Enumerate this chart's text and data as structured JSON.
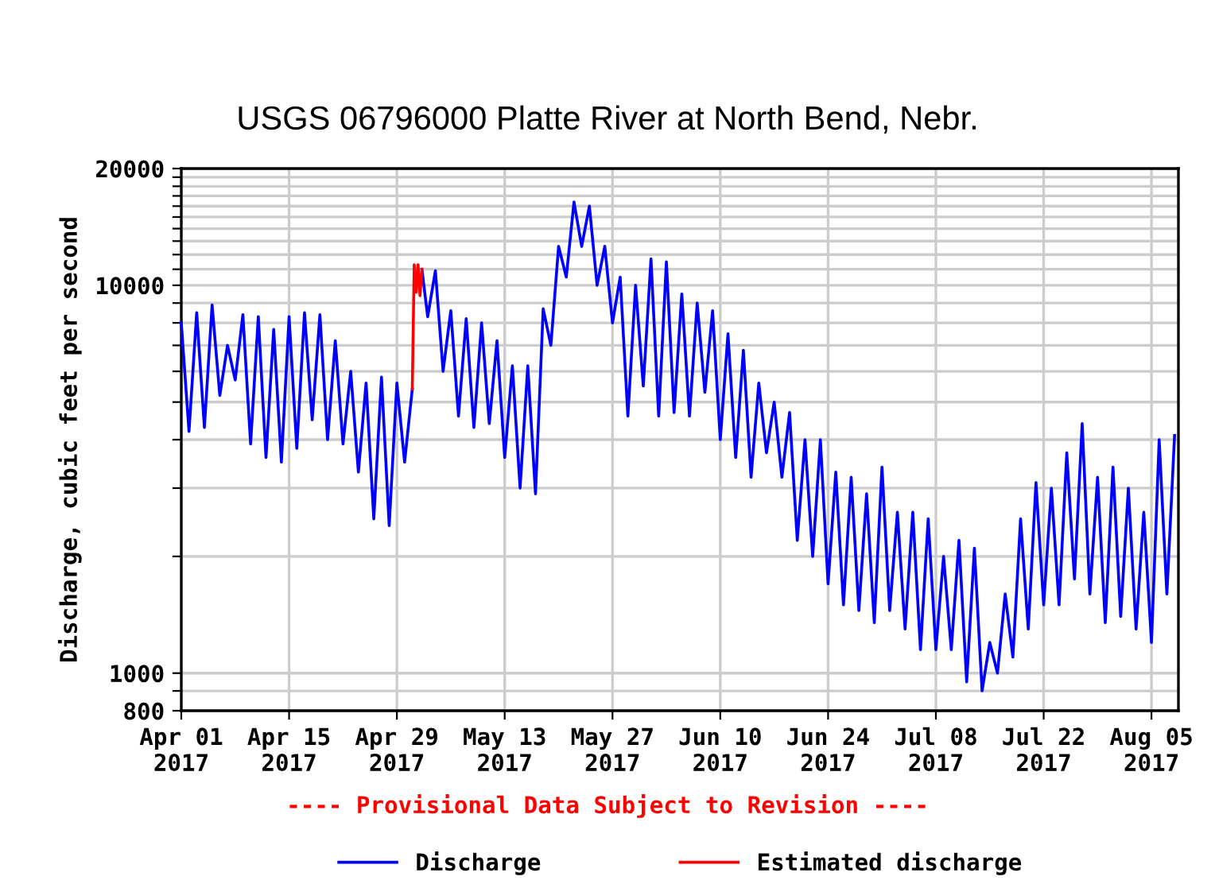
{
  "chart_data": {
    "type": "line",
    "title": "USGS 06796000 Platte River at North Bend, Nebr.",
    "ylabel": "Discharge, cubic feet per second",
    "annotations": [
      "---- Provisional Data Subject to Revision ----"
    ],
    "log": "y",
    "grid": true,
    "legend": "bottom",
    "marker": "none",
    "line_style": "solid",
    "xlim": [
      "2017-04-01",
      "2017-08-08T12:00"
    ],
    "xticks": [
      {
        "value": "2017-04-01",
        "label": "Apr 01\n2017"
      },
      {
        "value": "2017-04-15",
        "label": "Apr 15\n2017"
      },
      {
        "value": "2017-04-29",
        "label": "Apr 29\n2017"
      },
      {
        "value": "2017-05-13",
        "label": "May 13\n2017"
      },
      {
        "value": "2017-05-27",
        "label": "May 27\n2017"
      },
      {
        "value": "2017-06-10",
        "label": "Jun 10\n2017"
      },
      {
        "value": "2017-06-24",
        "label": "Jun 24\n2017"
      },
      {
        "value": "2017-07-08",
        "label": "Jul 08\n2017"
      },
      {
        "value": "2017-07-22",
        "label": "Jul 22\n2017"
      },
      {
        "value": "2017-08-05",
        "label": "Aug 05\n2017"
      }
    ],
    "ylim": [
      800,
      20000
    ],
    "yticks": [
      800,
      {
        "value": 900,
        "label": null
      },
      1000,
      {
        "value": 2000,
        "label": null
      },
      {
        "value": 3000,
        "label": null
      },
      {
        "value": 4000,
        "label": null
      },
      {
        "value": 5000,
        "label": null
      },
      {
        "value": 6000,
        "label": null
      },
      {
        "value": 7000,
        "label": null
      },
      {
        "value": 8000,
        "label": null
      },
      {
        "value": 9000,
        "label": null
      },
      10000,
      {
        "value": 11000,
        "label": null
      },
      {
        "value": 12000,
        "label": null
      },
      {
        "value": 13000,
        "label": null
      },
      {
        "value": 14000,
        "label": null
      },
      {
        "value": 15000,
        "label": null
      },
      {
        "value": 16000,
        "label": null
      },
      {
        "value": 17000,
        "label": null
      },
      {
        "value": 18000,
        "label": null
      },
      {
        "value": 19000,
        "label": null
      },
      20000
    ],
    "series": [
      {
        "name": "Discharge",
        "color": "#0000ff",
        "x": [
          "2017-04-01",
          "2017-04-02",
          "2017-04-03",
          "2017-04-04",
          "2017-04-05",
          "2017-04-06",
          "2017-04-07",
          "2017-04-08",
          "2017-04-09",
          "2017-04-10",
          "2017-04-11",
          "2017-04-12",
          "2017-04-13",
          "2017-04-14",
          "2017-04-15",
          "2017-04-16",
          "2017-04-17",
          "2017-04-18",
          "2017-04-19",
          "2017-04-20",
          "2017-04-21",
          "2017-04-22",
          "2017-04-23",
          "2017-04-24",
          "2017-04-25",
          "2017-04-26",
          "2017-04-27",
          "2017-04-28",
          "2017-04-29",
          "2017-04-30",
          "2017-05-01",
          "2017-05-01T12:00",
          "2017-05-02T06:00",
          "2017-05-03",
          "2017-05-04",
          "2017-05-05",
          "2017-05-06",
          "2017-05-07",
          "2017-05-08",
          "2017-05-09",
          "2017-05-10",
          "2017-05-11",
          "2017-05-12",
          "2017-05-13",
          "2017-05-14",
          "2017-05-15",
          "2017-05-16",
          "2017-05-17",
          "2017-05-18",
          "2017-05-19",
          "2017-05-20",
          "2017-05-21",
          "2017-05-22",
          "2017-05-23",
          "2017-05-24",
          "2017-05-25",
          "2017-05-26",
          "2017-05-27",
          "2017-05-28",
          "2017-05-29",
          "2017-05-30",
          "2017-05-31",
          "2017-06-01",
          "2017-06-02",
          "2017-06-03",
          "2017-06-04",
          "2017-06-05",
          "2017-06-06",
          "2017-06-07",
          "2017-06-08",
          "2017-06-09",
          "2017-06-10",
          "2017-06-11",
          "2017-06-12",
          "2017-06-13",
          "2017-06-14",
          "2017-06-15",
          "2017-06-16",
          "2017-06-17",
          "2017-06-18",
          "2017-06-19",
          "2017-06-20",
          "2017-06-21",
          "2017-06-22",
          "2017-06-23",
          "2017-06-24",
          "2017-06-25",
          "2017-06-26",
          "2017-06-27",
          "2017-06-28",
          "2017-06-29",
          "2017-06-30",
          "2017-07-01",
          "2017-07-02",
          "2017-07-03",
          "2017-07-04",
          "2017-07-05",
          "2017-07-06",
          "2017-07-07",
          "2017-07-08",
          "2017-07-09",
          "2017-07-10",
          "2017-07-11",
          "2017-07-12",
          "2017-07-13",
          "2017-07-14",
          "2017-07-15",
          "2017-07-16",
          "2017-07-17",
          "2017-07-18",
          "2017-07-19",
          "2017-07-20",
          "2017-07-21",
          "2017-07-22",
          "2017-07-23",
          "2017-07-24",
          "2017-07-25",
          "2017-07-26",
          "2017-07-27",
          "2017-07-28",
          "2017-07-29",
          "2017-07-30",
          "2017-07-31",
          "2017-08-01",
          "2017-08-02",
          "2017-08-03",
          "2017-08-04",
          "2017-08-05",
          "2017-08-06",
          "2017-08-07",
          "2017-08-08"
        ],
        "values": [
          8000,
          4200,
          8500,
          4300,
          8900,
          5200,
          7000,
          5700,
          8400,
          3900,
          8300,
          3600,
          7700,
          3500,
          8300,
          3800,
          8500,
          4500,
          8400,
          4000,
          7200,
          3900,
          6000,
          3300,
          5600,
          2500,
          5800,
          2400,
          5600,
          3500,
          5400,
          null,
          11000,
          8300,
          10900,
          6000,
          8600,
          4600,
          8200,
          4300,
          8000,
          4400,
          7200,
          3600,
          6200,
          3000,
          6200,
          2900,
          8700,
          7000,
          12600,
          10500,
          16400,
          12600,
          16000,
          10000,
          12600,
          8000,
          10500,
          4600,
          10000,
          5500,
          11700,
          4600,
          11500,
          4700,
          9500,
          4600,
          9000,
          5300,
          8600,
          4000,
          7500,
          3600,
          6800,
          3200,
          5600,
          3700,
          5000,
          3200,
          4700,
          2200,
          4000,
          2000,
          4000,
          1700,
          3300,
          1500,
          3200,
          1450,
          2900,
          1350,
          3400,
          1450,
          2600,
          1300,
          2600,
          1150,
          2500,
          1150,
          2000,
          1150,
          2200,
          950,
          2100,
          900,
          1200,
          1000,
          1600,
          1100,
          2500,
          1300,
          3100,
          1500,
          3000,
          1500,
          3700,
          1750,
          4400,
          1600,
          3200,
          1350,
          3400,
          1400,
          3000,
          1300,
          2600,
          1200,
          4000,
          1600,
          4100
        ]
      },
      {
        "name": "Estimated discharge",
        "color": "#ff0000",
        "x": [
          "2017-05-01",
          "2017-05-01T06:00",
          "2017-05-01T12:00",
          "2017-05-01T18:00",
          "2017-05-02",
          "2017-05-02T06:00"
        ],
        "values": [
          5400,
          11300,
          9600,
          11300,
          9400,
          11000
        ]
      }
    ]
  }
}
